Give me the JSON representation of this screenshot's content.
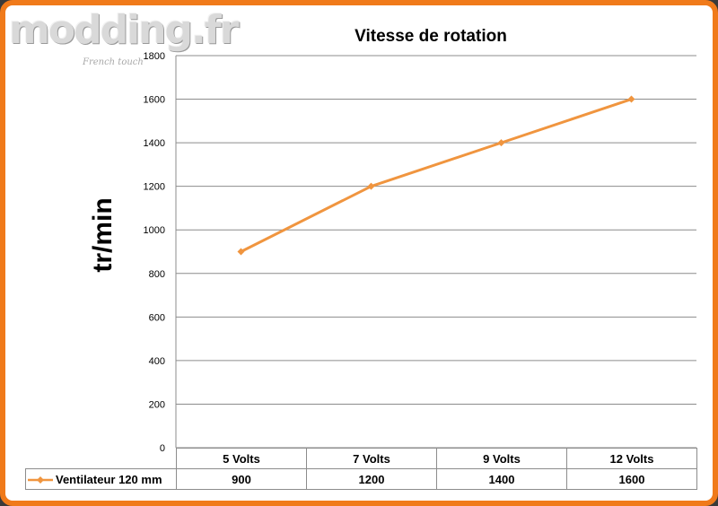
{
  "watermark": {
    "logo_text": "modding.fr",
    "tagline": "French touch"
  },
  "chart_data": {
    "type": "line",
    "title": "Vitesse de rotation",
    "xlabel": "",
    "ylabel": "tr/min",
    "categories": [
      "5 Volts",
      "7 Volts",
      "9 Volts",
      "12 Volts"
    ],
    "series": [
      {
        "name": "Ventilateur 120 mm",
        "values": [
          900,
          1200,
          1400,
          1600
        ],
        "color": "#f0953f"
      }
    ],
    "ylim": [
      0,
      1800
    ],
    "yticks": [
      0,
      200,
      400,
      600,
      800,
      1000,
      1200,
      1400,
      1600,
      1800
    ],
    "grid": true,
    "legend": "data-table",
    "data_table": true
  }
}
